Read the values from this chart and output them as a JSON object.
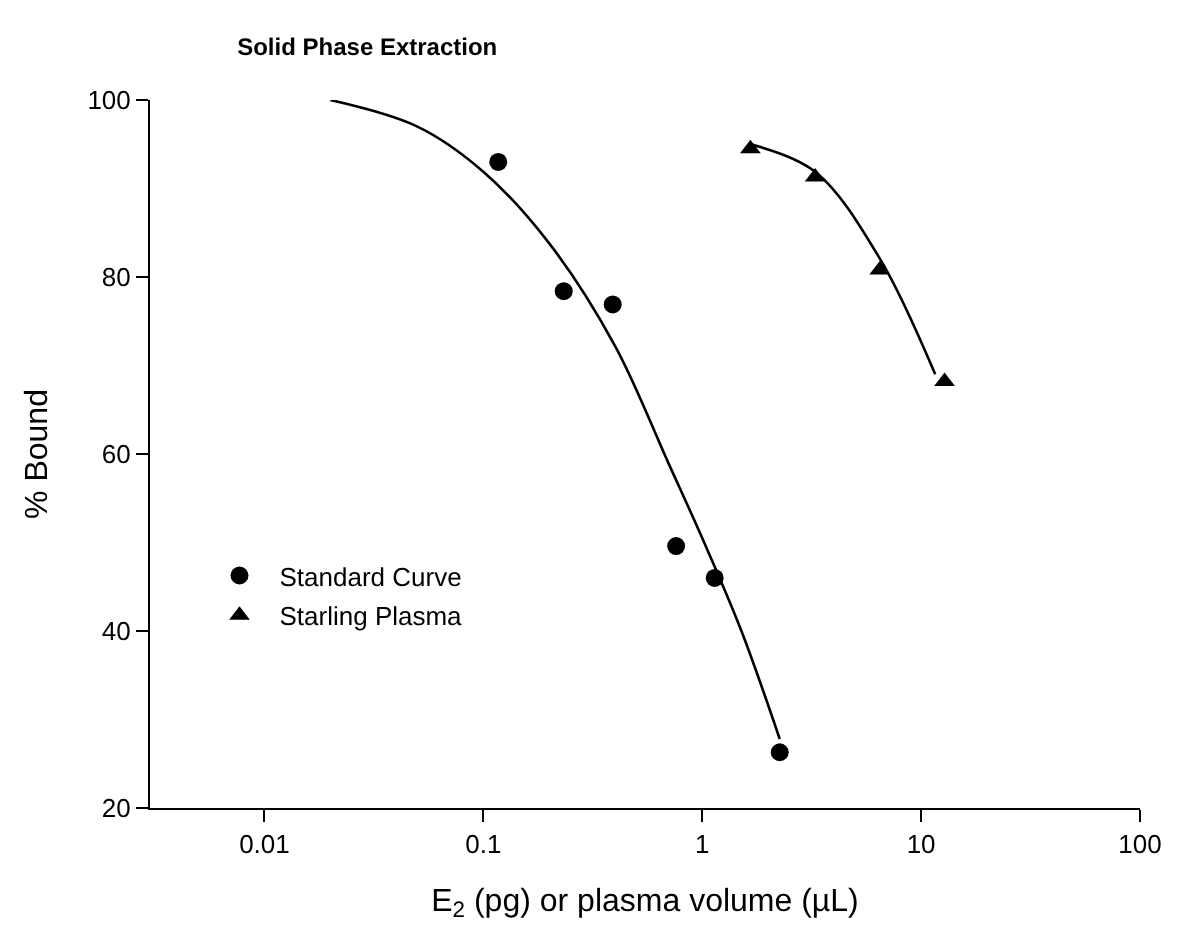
{
  "chart_data": {
    "type": "scatter",
    "title": "Solid Phase Extraction",
    "xlabel": "E$_{2}$ (pg) or plasma volume (µL)",
    "ylabel": "% Bound",
    "log": "x",
    "xlim": [
      0.003,
      100
    ],
    "xticks": [
      0.01,
      0.1,
      1,
      10,
      100
    ],
    "ylim": [
      20,
      100
    ],
    "yticks": [
      20,
      40,
      60,
      80,
      100
    ],
    "legend": "left",
    "series": [
      {
        "name": "Standard Curve",
        "color": "#000000",
        "marker": "circle",
        "x": [
          0.117,
          0.233,
          0.39,
          0.76,
          1.14,
          2.26
        ],
        "values": [
          93,
          78.4,
          76.9,
          49.6,
          46,
          26.3
        ]
      },
      {
        "name": "Starling Plasma",
        "color": "#000000",
        "marker": "triangle",
        "x": [
          1.66,
          3.28,
          6.47,
          12.8
        ],
        "values": [
          94.5,
          91.3,
          80.8,
          68.2
        ]
      },
      {
        "type": "line",
        "color": "#000000",
        "marker": "none",
        "line_style": "solid",
        "x": [
          0.02,
          0.05,
          0.1,
          0.2,
          0.4,
          0.7,
          1,
          1.5,
          2.26
        ],
        "values": [
          100,
          97,
          91.9,
          83.8,
          72.2,
          59,
          50.5,
          40.2,
          27.8
        ]
      },
      {
        "type": "line",
        "color": "#000000",
        "marker": "none",
        "line_style": "solid",
        "x": [
          1.66,
          3.28,
          6.47,
          11.6
        ],
        "values": [
          95,
          91.9,
          82.1,
          69
        ]
      }
    ]
  }
}
